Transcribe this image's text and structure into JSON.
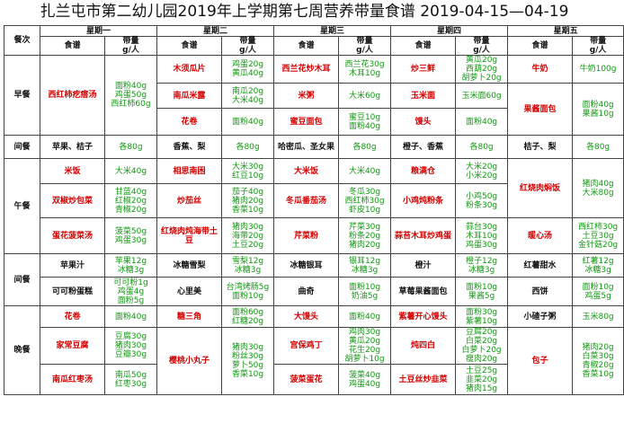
{
  "title": "扎兰屯市第二幼儿园2019年上学期第七周营养带量食谱  2019-04-15—04-19",
  "headers": {
    "meal_col": "餐次",
    "days": [
      "星期一",
      "星期二",
      "星期三",
      "星期四",
      "星期五"
    ],
    "menu": "食谱",
    "amount": "带量",
    "unit": "g/人"
  },
  "meals": {
    "breakfast": "早餐",
    "snack": "间餐",
    "lunch": "午餐",
    "snack2": "间餐",
    "dinner": "晚餐"
  },
  "breakfast": {
    "mon": {
      "dish": "西红柿疙瘩汤",
      "amt": "面粉40g\n鸡蛋50g\n西红柿60g"
    },
    "tue": [
      {
        "dish": "木须瓜片",
        "amt": "鸡蛋20g\n黄瓜40g"
      },
      {
        "dish": "南瓜米露",
        "amt": "南瓜20g\n大米40g"
      },
      {
        "dish": "花卷",
        "amt": "面粉40g"
      }
    ],
    "wed": [
      {
        "dish": "西兰花炒木耳",
        "amt": "西兰花30g\n木耳10g"
      },
      {
        "dish": "米粥",
        "amt": "大米60g"
      },
      {
        "dish": "蜜豆面包",
        "amt": "蜜豆10g\n面粉40g"
      }
    ],
    "thu": [
      {
        "dish": "炒三鲜",
        "amt": "黄瓜20g\n西葫20g\n胡萝卜20g"
      },
      {
        "dish": "玉米面",
        "amt": "玉米面60g"
      },
      {
        "dish": "馒头",
        "amt": "面粉40g"
      }
    ],
    "fri": [
      {
        "dish": "牛奶",
        "amt": "牛奶100g"
      },
      {
        "dish": "果酱面包",
        "amt": "面粉40g\n果酱10g"
      }
    ]
  },
  "snack": {
    "mon": {
      "dish": "苹果、桔子",
      "amt": "各80g"
    },
    "tue": {
      "dish": "香蕉、梨",
      "amt": "各80g"
    },
    "wed": {
      "dish": "哈密瓜、圣女果",
      "amt": "各80g"
    },
    "thu": {
      "dish": "橙子、香蕉",
      "amt": "各80g"
    },
    "fri": {
      "dish": "桔子、梨",
      "amt": "各80g"
    }
  },
  "lunch": {
    "mon": [
      {
        "dish": "米饭",
        "amt": "大米40g"
      },
      {
        "dish": "双椒炒包菜",
        "amt": "甘蓝40g\n红椒20g\n青椒20g"
      },
      {
        "dish": "蛋花菠菜汤",
        "amt": "菠菜50g\n鸡蛋30g"
      }
    ],
    "tue": [
      {
        "dish": "相思南困",
        "amt": "大米30g\n红豆10g"
      },
      {
        "dish": "炒茄丝",
        "amt": "茄子40g\n猪肉20g\n香菜10g"
      },
      {
        "dish": "红烧肉炖海带土豆",
        "amt": "猪肉30g\n海带20g\n土豆20g"
      }
    ],
    "wed": [
      {
        "dish": "大米饭",
        "amt": "大米40g"
      },
      {
        "dish": "冬瓜番茄汤",
        "amt": "冬瓜30g\n西红柿30g\n虾皮10g"
      },
      {
        "dish": "芹菜粉",
        "amt": "芹菜30g\n粉条20g\n猪肉20g"
      }
    ],
    "thu": [
      {
        "dish": "粮满仓",
        "amt": "大米20g\n小米20g"
      },
      {
        "dish": "小鸡炖粉条",
        "amt": "小鸡50g\n粉条30g"
      },
      {
        "dish": "蒜苔木耳炒鸡蛋",
        "amt": "蒜台30g\n木耳10g\n鸡蛋30g"
      }
    ],
    "fri": [
      {
        "dish": "红烧肉焖饭",
        "amt": "猪肉40g\n大米80g"
      },
      {
        "dish": "暖心汤",
        "amt": "西红柿30g\n土豆30g\n金针菇20g"
      }
    ]
  },
  "snack2": {
    "mon": [
      {
        "dish": "苹果汁",
        "amt": "苹果12g\n冰糖3g"
      },
      {
        "dish": "可可粉蛋糕",
        "amt": "可可粉1g\n鸡蛋4g\n面粉5g"
      }
    ],
    "tue": [
      {
        "dish": "冰糖雪梨",
        "amt": "雪梨12g\n冰糖3g"
      },
      {
        "dish": "心里美",
        "amt": "台湾烤肠5g\n面粉10g"
      }
    ],
    "wed": [
      {
        "dish": "冰糖银耳",
        "amt": "银耳12g\n冰糖3g"
      },
      {
        "dish": "曲奇",
        "amt": "面粉10g\n奶油5g"
      }
    ],
    "thu": [
      {
        "dish": "橙汁",
        "amt": "橙子12g\n冰糖3g"
      },
      {
        "dish": "草莓果酱面包",
        "amt": "面粉10g\n果酱5g"
      }
    ],
    "fri": [
      {
        "dish": "红薯甜水",
        "amt": "红薯12g\n冰糖3g"
      },
      {
        "dish": "西饼",
        "amt": "面粉10g\n鸡蛋5g"
      }
    ]
  },
  "dinner": {
    "mon": [
      {
        "dish": "花卷",
        "amt": "面粉40g"
      },
      {
        "dish": "家常豆腐",
        "amt": "豆腐30g\n猪肉30g\n豆瓣30g"
      },
      {
        "dish": "南瓜红枣汤",
        "amt": "南瓜50g\n红枣30g"
      }
    ],
    "tue": [
      {
        "dish": "糖三角",
        "amt": "面粉60g\n红糖20g"
      },
      {
        "dish": "樱桃小丸子",
        "amt": "猪肉30g\n粉丝30g\n萝卜50g\n香菜10g"
      }
    ],
    "wed": [
      {
        "dish": "大馒头",
        "amt": "面粉40g"
      },
      {
        "dish": "宫保鸡丁",
        "amt": "鸡肉30g\n黄瓜20g\n花生20g\n胡萝卜10g"
      },
      {
        "dish": "菠菜蛋花",
        "amt": "菠菜40g\n鸡蛋40g"
      }
    ],
    "thu": [
      {
        "dish": "紫薯开心馒头",
        "amt": "面粉30g\n紫薯10g"
      },
      {
        "dish": "炖四白",
        "amt": "豆腐20g\n白菜20g\n白萝卜20g\n瘦肉20g"
      },
      {
        "dish": "土豆丝炒韭菜",
        "amt": "土豆25g\n韭菜20g\n猪肉15g"
      }
    ],
    "fri": [
      {
        "dish": "小碴子粥",
        "amt": "玉米80g"
      },
      {
        "dish": "包子",
        "amt": "猪肉20g\n白菜30g\n青椒20g\n香菜10g"
      }
    ]
  },
  "colors": {
    "dish_red": "#d40000",
    "dish_black": "#111111",
    "amount_green": "#119911",
    "border": "#444444"
  }
}
